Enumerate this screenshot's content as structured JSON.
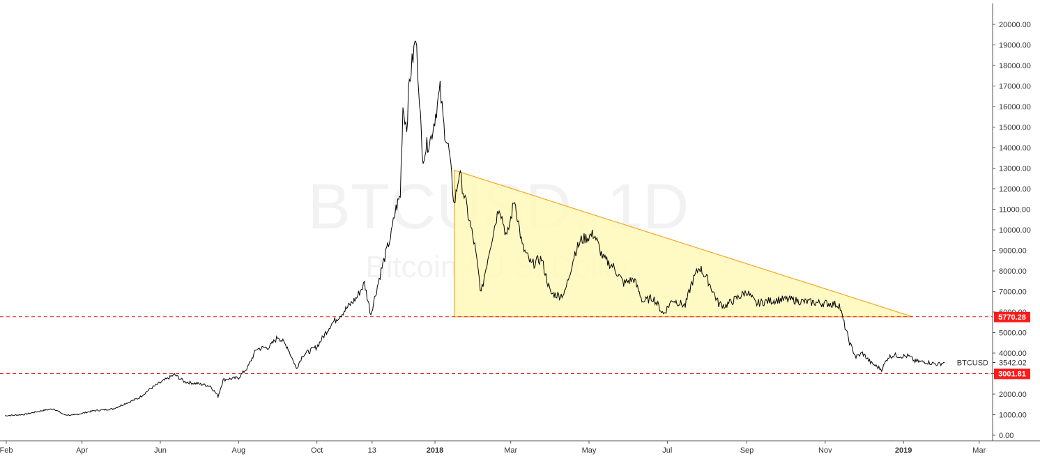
{
  "chart_data": {
    "type": "line",
    "symbol": "BTCUSD",
    "watermark": {
      "title": "BTCUSD, 1D",
      "subtitle": "Bitcoin / U.S. Dollar"
    },
    "ylim": [
      -200,
      21000
    ],
    "y_ticks": [
      "0.00",
      "1000.00",
      "2000.00",
      "3000.00",
      "4000.00",
      "5000.00",
      "6000.00",
      "7000.00",
      "8000.00",
      "9000.00",
      "10000.00",
      "11000.00",
      "12000.00",
      "13000.00",
      "14000.00",
      "15000.00",
      "16000.00",
      "17000.00",
      "18000.00",
      "19000.00",
      "20000.00"
    ],
    "x_ticks": [
      {
        "label": "Feb",
        "date": "2017-02-01",
        "bold": false
      },
      {
        "label": "Apr",
        "date": "2017-04-01",
        "bold": false
      },
      {
        "label": "Jun",
        "date": "2017-06-01",
        "bold": false
      },
      {
        "label": "Aug",
        "date": "2017-08-01",
        "bold": false
      },
      {
        "label": "Oct",
        "date": "2017-10-01",
        "bold": false
      },
      {
        "label": "13",
        "date": "2017-11-13",
        "bold": false
      },
      {
        "label": "2018",
        "date": "2018-01-01",
        "bold": true
      },
      {
        "label": "Mar",
        "date": "2018-03-01",
        "bold": false
      },
      {
        "label": "May",
        "date": "2018-05-01",
        "bold": false
      },
      {
        "label": "Jul",
        "date": "2018-07-01",
        "bold": false
      },
      {
        "label": "Sep",
        "date": "2018-09-01",
        "bold": false
      },
      {
        "label": "Nov",
        "date": "2018-11-01",
        "bold": false
      },
      {
        "label": "2019",
        "date": "2019-01-01",
        "bold": true
      },
      {
        "label": "Mar",
        "date": "2019-03-01",
        "bold": false
      }
    ],
    "series": [
      {
        "points": [
          [
            "2017-01-31",
            950
          ],
          [
            "2017-02-15",
            1010
          ],
          [
            "2017-03-01",
            1200
          ],
          [
            "2017-03-10",
            1290
          ],
          [
            "2017-03-18",
            1000
          ],
          [
            "2017-03-25",
            970
          ],
          [
            "2017-04-10",
            1190
          ],
          [
            "2017-04-25",
            1280
          ],
          [
            "2017-05-05",
            1550
          ],
          [
            "2017-05-15",
            1800
          ],
          [
            "2017-05-25",
            2300
          ],
          [
            "2017-06-05",
            2700
          ],
          [
            "2017-06-12",
            2950
          ],
          [
            "2017-06-20",
            2600
          ],
          [
            "2017-07-01",
            2500
          ],
          [
            "2017-07-10",
            2400
          ],
          [
            "2017-07-16",
            1900
          ],
          [
            "2017-07-20",
            2700
          ],
          [
            "2017-08-01",
            2800
          ],
          [
            "2017-08-08",
            3300
          ],
          [
            "2017-08-15",
            4200
          ],
          [
            "2017-08-25",
            4300
          ],
          [
            "2017-09-01",
            4800
          ],
          [
            "2017-09-08",
            4300
          ],
          [
            "2017-09-15",
            3250
          ],
          [
            "2017-09-20",
            3900
          ],
          [
            "2017-10-01",
            4300
          ],
          [
            "2017-10-12",
            5400
          ],
          [
            "2017-10-20",
            5900
          ],
          [
            "2017-11-01",
            6700
          ],
          [
            "2017-11-07",
            7400
          ],
          [
            "2017-11-12",
            5900
          ],
          [
            "2017-11-20",
            8000
          ],
          [
            "2017-11-28",
            9800
          ],
          [
            "2017-12-01",
            10900
          ],
          [
            "2017-12-05",
            11700
          ],
          [
            "2017-12-07",
            16000
          ],
          [
            "2017-12-10",
            15000
          ],
          [
            "2017-12-12",
            17200
          ],
          [
            "2017-12-17",
            19300
          ],
          [
            "2017-12-20",
            16500
          ],
          [
            "2017-12-22",
            13500
          ],
          [
            "2017-12-25",
            14000
          ],
          [
            "2017-12-29",
            14500
          ],
          [
            "2018-01-05",
            16800
          ],
          [
            "2018-01-08",
            15000
          ],
          [
            "2018-01-12",
            13800
          ],
          [
            "2018-01-16",
            11200
          ],
          [
            "2018-01-20",
            12800
          ],
          [
            "2018-01-26",
            11000
          ],
          [
            "2018-02-01",
            9200
          ],
          [
            "2018-02-06",
            6900
          ],
          [
            "2018-02-12",
            8900
          ],
          [
            "2018-02-20",
            11200
          ],
          [
            "2018-02-26",
            9600
          ],
          [
            "2018-03-04",
            11500
          ],
          [
            "2018-03-10",
            9200
          ],
          [
            "2018-03-17",
            8300
          ],
          [
            "2018-03-25",
            8600
          ],
          [
            "2018-04-01",
            6900
          ],
          [
            "2018-04-08",
            6800
          ],
          [
            "2018-04-12",
            6900
          ],
          [
            "2018-04-20",
            8900
          ],
          [
            "2018-04-25",
            9500
          ],
          [
            "2018-05-05",
            9800
          ],
          [
            "2018-05-12",
            8600
          ],
          [
            "2018-05-20",
            8200
          ],
          [
            "2018-05-28",
            7400
          ],
          [
            "2018-06-05",
            7600
          ],
          [
            "2018-06-12",
            6500
          ],
          [
            "2018-06-20",
            6700
          ],
          [
            "2018-06-28",
            5900
          ],
          [
            "2018-07-05",
            6600
          ],
          [
            "2018-07-15",
            6300
          ],
          [
            "2018-07-20",
            7400
          ],
          [
            "2018-07-26",
            8200
          ],
          [
            "2018-08-02",
            7500
          ],
          [
            "2018-08-10",
            6400
          ],
          [
            "2018-08-15",
            6300
          ],
          [
            "2018-08-25",
            6700
          ],
          [
            "2018-09-01",
            7000
          ],
          [
            "2018-09-08",
            6400
          ],
          [
            "2018-09-15",
            6500
          ],
          [
            "2018-09-25",
            6600
          ],
          [
            "2018-10-05",
            6600
          ],
          [
            "2018-10-15",
            6500
          ],
          [
            "2018-10-25",
            6450
          ],
          [
            "2018-11-05",
            6400
          ],
          [
            "2018-11-12",
            6350
          ],
          [
            "2018-11-15",
            5600
          ],
          [
            "2018-11-20",
            4500
          ],
          [
            "2018-11-25",
            3800
          ],
          [
            "2018-11-30",
            4000
          ],
          [
            "2018-12-07",
            3500
          ],
          [
            "2018-12-15",
            3200
          ],
          [
            "2018-12-20",
            3800
          ],
          [
            "2018-12-25",
            3900
          ],
          [
            "2018-12-30",
            3850
          ],
          [
            "2019-01-05",
            3850
          ],
          [
            "2019-01-10",
            3600
          ],
          [
            "2019-01-20",
            3550
          ],
          [
            "2019-01-28",
            3450
          ],
          [
            "2019-02-02",
            3542.02
          ]
        ]
      }
    ],
    "support_levels": [
      {
        "value": 5770.28,
        "label": "5770.28"
      },
      {
        "value": 3001.81,
        "label": "3001.81"
      }
    ],
    "last_price": {
      "label": "BTCUSD",
      "value": 3542.02,
      "value_label": "3542.02"
    },
    "triangle": [
      [
        "2018-01-16",
        12900
      ],
      [
        "2019-01-08",
        5770.28
      ],
      [
        "2018-01-16",
        5770.28
      ]
    ],
    "colors": {
      "line": "#000000",
      "support": "#e02020",
      "support_label_bg": "#ff1a1a",
      "triangle_fill": "#fff9b8",
      "triangle_stroke": "#f5a623",
      "axis": "#555555"
    }
  }
}
